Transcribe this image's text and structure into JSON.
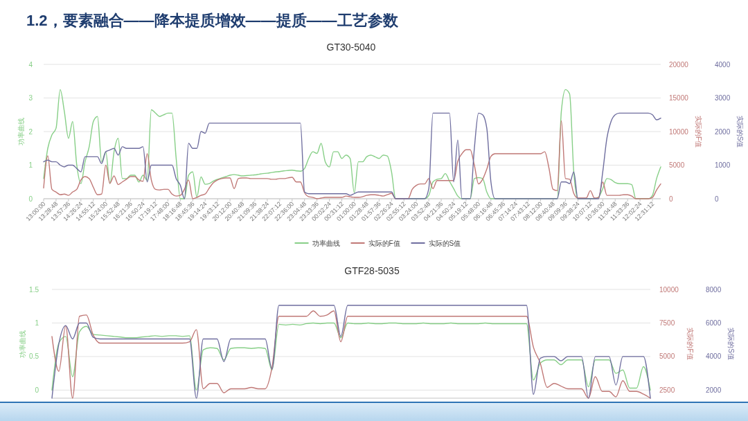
{
  "chart_data": [
    {
      "type": "line",
      "title": "GT30-5040",
      "annotations": [
        "1.2，要素融合——降本提质增效——提质——工艺参数"
      ],
      "ylabel": "功率曲线",
      "y2label": "实际的F值",
      "y3label": "实际的S值",
      "categories": [
        "13:00:00",
        null,
        null,
        "13:28:48",
        null,
        null,
        "13:57:36",
        null,
        null,
        "14:26:24",
        null,
        null,
        "14:55:12",
        null,
        null,
        "15:24:00",
        null,
        null,
        "15:52:48",
        null,
        null,
        "16:21:36",
        null,
        null,
        "16:50:24",
        null,
        null,
        "17:19:12",
        null,
        null,
        "17:48:00",
        null,
        null,
        "18:16:48",
        null,
        null,
        "18:45:36",
        null,
        null,
        "19:14:24",
        null,
        null,
        "19:43:12",
        null,
        null,
        "20:12:00",
        null,
        null,
        "20:40:48",
        null,
        null,
        "21:09:36",
        null,
        null,
        "21:38:24",
        null,
        null,
        "22:07:12",
        null,
        null,
        "22:36:00",
        null,
        null,
        "23:04:48",
        null,
        null,
        "23:33:36",
        null,
        null,
        "00:02:24",
        null,
        null,
        "00:31:12",
        null,
        null,
        "01:00:00",
        null,
        null,
        "01:28:48",
        null,
        null,
        "01:57:36",
        null,
        null,
        "02:26:24",
        null,
        null,
        "02:55:12",
        null,
        null,
        "03:24:00",
        null,
        null,
        "03:52:48",
        null,
        null,
        "04:21:36",
        null,
        null,
        "04:50:24",
        null,
        null,
        "05:19:12",
        null,
        null,
        "05:48:00",
        null,
        null,
        "06:16:48",
        null,
        null,
        "06:45:36",
        null,
        null,
        "07:14:24",
        null,
        null,
        "07:43:12",
        null,
        null,
        "08:12:00",
        null,
        null,
        "08:40:48",
        null,
        null,
        "09:09:36",
        null,
        null,
        "09:38:24",
        null,
        null,
        "10:07:12",
        null,
        null,
        "10:36:00",
        null,
        null,
        "11:04:48",
        null,
        null,
        "11:33:36",
        null,
        null,
        "12:02:24",
        null,
        null,
        "12:31:12",
        null,
        null
      ],
      "ylim": [
        0,
        4
      ],
      "yticks": [
        0,
        1,
        2,
        3,
        4
      ],
      "y2lim": [
        0,
        20000
      ],
      "y2ticks": [
        0,
        5000,
        10000,
        15000,
        20000
      ],
      "y3lim": [
        0,
        4000
      ],
      "y3ticks": [
        0,
        1000,
        2000,
        3000,
        4000
      ],
      "grid": "y",
      "legend": "bottom",
      "series": [
        {
          "name": "功率曲线",
          "color": "#87cf87",
          "values": [
            0.6,
            1.5,
            1.9,
            2.1,
            3.25,
            2.6,
            1.8,
            2.3,
            1,
            0.45,
            1.1,
            1.55,
            2.3,
            2.45,
            1.1,
            1.4,
            0.45,
            1.4,
            1.8,
            0.6,
            0.6,
            0.7,
            0.7,
            0.5,
            0.7,
            0.55,
            2.65,
            2.55,
            2.45,
            2.5,
            2.55,
            2.55,
            1.2,
            0,
            0,
            0.7,
            0.8,
            0.05,
            0.65,
            0.43,
            0.45,
            0.53,
            0.58,
            0.62,
            0.66,
            0.7,
            0.72,
            0.7,
            0.68,
            0.69,
            0.7,
            0.71,
            0.73,
            0.75,
            0.76,
            0.78,
            0.8,
            0.81,
            0.83,
            0.84,
            0.85,
            0.83,
            0.82,
            0.9,
            1.2,
            1.4,
            1.35,
            1.65,
            1.1,
            0.95,
            1.4,
            1.4,
            1.2,
            1.3,
            1.2,
            0.18,
            1.1,
            1.1,
            1.25,
            1.3,
            1.25,
            1.2,
            1.3,
            1.27,
            0.8,
            0,
            0,
            0,
            0,
            0,
            0,
            0,
            0,
            0.1,
            0.5,
            0.58,
            0.6,
            0.75,
            0.52,
            0.3,
            0.08,
            0,
            0,
            0,
            0.6,
            0.63,
            0.6,
            0.2,
            0,
            0,
            0,
            0,
            0,
            0,
            0,
            0,
            0,
            0,
            0,
            0,
            0,
            0,
            0,
            0,
            0,
            2.6,
            3.25,
            3.12,
            0.8,
            0,
            0,
            0,
            0,
            0,
            0.05,
            0.3,
            0.6,
            0.57,
            0.48,
            0.45,
            0.45,
            0.45,
            0.42,
            0,
            0,
            0,
            0,
            0.1,
            0.6,
            0.95
          ]
        },
        {
          "name": "实际的F值",
          "color": "#c07876",
          "axis": "y2",
          "values": [
            1600,
            6400,
            1400,
            1000,
            600,
            700,
            500,
            1000,
            1400,
            2800,
            3300,
            3000,
            1700,
            600,
            700,
            5000,
            2300,
            3400,
            2100,
            2500,
            2900,
            3300,
            3300,
            2800,
            2600,
            6700,
            2800,
            1400,
            1300,
            1400,
            1400,
            700,
            400,
            500,
            1400,
            2800,
            0,
            200,
            500,
            700,
            1600,
            2400,
            2800,
            3000,
            3100,
            3100,
            1500,
            3000,
            3100,
            3100,
            3000,
            3000,
            3000,
            3000,
            3000,
            2900,
            2900,
            3000,
            3000,
            3100,
            3200,
            2500,
            2500,
            900,
            300,
            200,
            0,
            100,
            200,
            200,
            200,
            200,
            200,
            400,
            300,
            200,
            200,
            300,
            500,
            600,
            600,
            500,
            400,
            600,
            800,
            0,
            0,
            0,
            0,
            1400,
            2000,
            2200,
            2200,
            3000,
            1500,
            2700,
            2700,
            2700,
            2700,
            2700,
            5600,
            6700,
            7300,
            7300,
            5000,
            2200,
            2900,
            4400,
            6300,
            6700,
            6700,
            6700,
            6700,
            6700,
            6700,
            6700,
            6700,
            6700,
            6700,
            6700,
            6700,
            7000,
            4600,
            1400,
            1200,
            11600,
            3000,
            2900,
            800,
            100,
            100,
            100,
            1200,
            100,
            200,
            2500,
            500,
            500,
            500,
            500,
            600,
            600,
            400,
            0,
            0,
            0,
            0,
            200,
            1300,
            2200
          ]
        },
        {
          "name": "实际的S值",
          "color": "#6f6e9f",
          "axis": "y3",
          "values": [
            1100,
            1150,
            1100,
            1100,
            1000,
            950,
            1000,
            1000,
            900,
            800,
            1250,
            1250,
            1250,
            1250,
            1050,
            1400,
            1450,
            1500,
            1300,
            1550,
            1500,
            1500,
            1500,
            1500,
            1550,
            500,
            1000,
            1000,
            1000,
            1000,
            1000,
            1000,
            600,
            400,
            0,
            1650,
            1500,
            1500,
            2000,
            1950,
            2250,
            2250,
            2250,
            2250,
            2250,
            2250,
            2250,
            2250,
            2250,
            2250,
            2250,
            2250,
            2250,
            2250,
            2250,
            2250,
            2250,
            2250,
            2250,
            2250,
            2250,
            2250,
            2250,
            200,
            150,
            150,
            150,
            150,
            150,
            150,
            150,
            150,
            150,
            150,
            100,
            150,
            200,
            200,
            200,
            200,
            200,
            200,
            200,
            200,
            200,
            0,
            0,
            0,
            0,
            0,
            0,
            0,
            0,
            300,
            2550,
            2550,
            2550,
            2550,
            2550,
            500,
            1750,
            0,
            0,
            0,
            1500,
            2550,
            2500,
            2100,
            500,
            0,
            0,
            0,
            0,
            0,
            0,
            0,
            0,
            0,
            0,
            0,
            0,
            0,
            0,
            0,
            0,
            500,
            500,
            450,
            800,
            0,
            0,
            0,
            0,
            0,
            0,
            800,
            1800,
            2300,
            2500,
            2550,
            2550,
            2550,
            2550,
            2550,
            2550,
            2550,
            2550,
            2500,
            2350,
            2400
          ]
        }
      ]
    },
    {
      "type": "line",
      "title": "GTF28-5035",
      "ylabel": "功率曲线",
      "y2label": "实际的F值",
      "y3label": "实际的S值",
      "categories": [
        null,
        null,
        null,
        null,
        null,
        null,
        null,
        null,
        null,
        null,
        null,
        null,
        null,
        null,
        null,
        null,
        null,
        null,
        null,
        null,
        null,
        null,
        null,
        null,
        null,
        null,
        null,
        null,
        null,
        null,
        null,
        null,
        null,
        null,
        null,
        null,
        null,
        null,
        null,
        null,
        null,
        null,
        null,
        null,
        null,
        null,
        null,
        null,
        null,
        null,
        null,
        null,
        null,
        null,
        null,
        null,
        null,
        null,
        null,
        null,
        null,
        null,
        null,
        null,
        null,
        null,
        null,
        null,
        null,
        null,
        null,
        null,
        null,
        null,
        null,
        null,
        null,
        null,
        null,
        null,
        null,
        null,
        null,
        null,
        null,
        null,
        null,
        null
      ],
      "ylim": [
        -0.12,
        1.5
      ],
      "yticks": [
        0,
        0.5,
        1,
        1.5
      ],
      "y2lim": [
        1900,
        10000
      ],
      "y2ticks": [
        2500,
        5000,
        7500,
        10000
      ],
      "y3lim": [
        1520,
        8000
      ],
      "y3ticks": [
        2000,
        4000,
        6000,
        8000
      ],
      "grid": "y",
      "series": [
        {
          "color": "#87cf87",
          "values": [
            0,
            0.7,
            0.8,
            0.2,
            0.87,
            0.95,
            0.83,
            0.82,
            0.81,
            0.8,
            0.79,
            0.78,
            0.78,
            0.79,
            0.8,
            0.81,
            0.8,
            0.81,
            0.81,
            0.8,
            0.81,
            0,
            0.6,
            0.63,
            0.62,
            0.45,
            0.62,
            0.63,
            0.63,
            0.62,
            0.63,
            0.62,
            0.3,
            0.98,
            0.97,
            0.98,
            0.97,
            0.99,
            1,
            0.99,
            1,
            1,
            0.78,
            1,
            0.99,
            0.99,
            1,
            0.99,
            0.99,
            1,
            1,
            0.99,
            0.99,
            0.99,
            1,
            0.99,
            0.99,
            0.99,
            1,
            0.99,
            0.99,
            0.99,
            0.99,
            1,
            0.99,
            0.99,
            0.99,
            0.99,
            0.99,
            0.99,
            0.15,
            0.4,
            0.45,
            0.45,
            0.38,
            0.45,
            0.45,
            0.45,
            0.05,
            0.45,
            0.45,
            0.45,
            0.25,
            0.3,
            0.03,
            0.03,
            0.35,
            0
          ]
        },
        {
          "color": "#c07876",
          "axis": "y2",
          "values": [
            6500,
            3900,
            7300,
            1900,
            8000,
            8100,
            6600,
            6000,
            6000,
            6000,
            6000,
            6000,
            6000,
            6000,
            6000,
            6000,
            6000,
            6000,
            6000,
            6000,
            6100,
            7000,
            2600,
            3000,
            3000,
            2300,
            2600,
            2600,
            2600,
            2700,
            2600,
            2600,
            4200,
            8000,
            8000,
            8000,
            8000,
            8000,
            8400,
            8000,
            8100,
            8400,
            6100,
            8000,
            8000,
            8000,
            8000,
            8000,
            8000,
            8000,
            8000,
            8000,
            8000,
            8000,
            8000,
            8000,
            8000,
            8000,
            8000,
            8000,
            8000,
            8000,
            8000,
            8000,
            8000,
            8000,
            8000,
            8000,
            8000,
            8000,
            5700,
            4500,
            2700,
            3000,
            2800,
            2600,
            2600,
            2600,
            1900,
            3500,
            2400,
            2400,
            2000,
            3200,
            2400,
            2400,
            2200,
            1900
          ]
        },
        {
          "color": "#6f6e9f",
          "axis": "y3",
          "values": [
            1520,
            4750,
            5850,
            5050,
            6000,
            6000,
            5150,
            5050,
            5050,
            5050,
            5050,
            5050,
            5050,
            5050,
            5050,
            5050,
            5050,
            5050,
            5050,
            5050,
            5050,
            1520,
            5050,
            5050,
            5050,
            3700,
            5050,
            5050,
            5050,
            5050,
            5050,
            5050,
            3250,
            7050,
            7050,
            7050,
            7050,
            7050,
            7050,
            7050,
            7050,
            7050,
            5200,
            7050,
            7050,
            7050,
            7050,
            7050,
            7050,
            7050,
            7050,
            7050,
            7050,
            7050,
            7050,
            7050,
            7050,
            7050,
            7050,
            7050,
            7050,
            7050,
            7050,
            7050,
            7050,
            7050,
            7050,
            7050,
            7050,
            7050,
            1750,
            3900,
            4000,
            4000,
            3750,
            4000,
            4000,
            4000,
            1520,
            4000,
            4000,
            4000,
            2300,
            4000,
            4000,
            4000,
            4000,
            1520
          ]
        }
      ]
    }
  ]
}
